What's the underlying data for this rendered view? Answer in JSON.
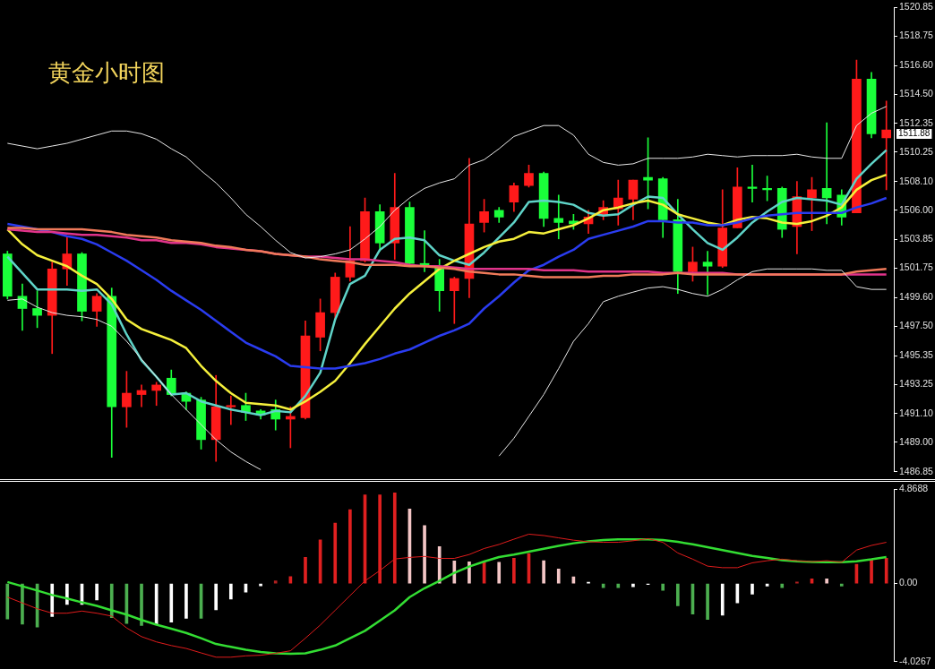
{
  "chart_data": [
    {
      "type": "candlestick",
      "title": "黄金小时图",
      "categories": [
        null,
        null,
        null,
        null,
        null,
        null,
        null,
        null,
        null,
        null,
        null,
        null,
        null,
        null,
        null,
        null,
        null,
        null,
        null,
        null,
        null,
        null,
        null,
        null,
        null,
        null,
        null,
        null,
        null,
        null,
        null,
        null,
        null,
        null,
        null,
        null,
        null,
        null,
        null,
        null,
        null,
        null,
        null,
        null,
        null,
        null,
        null,
        null,
        null,
        null,
        null,
        null,
        null,
        null,
        null,
        null,
        null,
        null,
        null,
        null
      ],
      "ohlc": [
        [
          1502.8,
          1503.0,
          1499.5,
          1499.7
        ],
        [
          1499.7,
          1500.6,
          1497.2,
          1498.8
        ],
        [
          1498.8,
          1500.1,
          1497.4,
          1498.3
        ],
        [
          1498.3,
          1502.2,
          1495.5,
          1501.7
        ],
        [
          1501.7,
          1504.0,
          1500.5,
          1502.8
        ],
        [
          1502.8,
          1502.9,
          1497.9,
          1498.6
        ],
        [
          1498.6,
          1499.9,
          1497.5,
          1499.7
        ],
        [
          1499.7,
          1500.3,
          1487.9,
          1491.6
        ],
        [
          1491.6,
          1494.2,
          1490.1,
          1492.6
        ],
        [
          1492.5,
          1493.2,
          1491.6,
          1492.8
        ],
        [
          1492.8,
          1493.4,
          1491.7,
          1493.2
        ],
        [
          1493.7,
          1494.3,
          1492.4,
          1492.5
        ],
        [
          1492.6,
          1492.7,
          1491.4,
          1492.0
        ],
        [
          1492.1,
          1492.3,
          1488.5,
          1489.2
        ],
        [
          1489.2,
          1493.9,
          1487.6,
          1491.6
        ],
        [
          1491.6,
          1492.4,
          1490.3,
          1491.7
        ],
        [
          1491.7,
          1492.6,
          1490.6,
          1491.2
        ],
        [
          1491.3,
          1491.4,
          1490.7,
          1491.0
        ],
        [
          1491.4,
          1492.1,
          1489.9,
          1490.7
        ],
        [
          1490.7,
          1491.6,
          1488.6,
          1490.9
        ],
        [
          1490.8,
          1497.9,
          1490.7,
          1496.8
        ],
        [
          1496.7,
          1499.5,
          1495.7,
          1498.5
        ],
        [
          1498.5,
          1501.4,
          1498.0,
          1501.1
        ],
        [
          1501.1,
          1504.8,
          1500.8,
          1502.3
        ],
        [
          1502.3,
          1506.9,
          1502.2,
          1505.9
        ],
        [
          1505.9,
          1506.4,
          1503.0,
          1503.6
        ],
        [
          1503.6,
          1508.7,
          1502.4,
          1506.2
        ],
        [
          1506.2,
          1506.6,
          1502.0,
          1502.1
        ],
        [
          1502.1,
          1504.5,
          1501.5,
          1501.9
        ],
        [
          1501.9,
          1502.4,
          1498.6,
          1500.1
        ],
        [
          1500.1,
          1501.1,
          1497.7,
          1501.0
        ],
        [
          1501.0,
          1509.8,
          1499.6,
          1505.0
        ],
        [
          1505.1,
          1506.8,
          1504.4,
          1505.9
        ],
        [
          1506.0,
          1506.2,
          1505.1,
          1505.5
        ],
        [
          1506.6,
          1508.0,
          1505.9,
          1507.8
        ],
        [
          1507.8,
          1509.3,
          1507.7,
          1508.7
        ],
        [
          1508.7,
          1508.8,
          1504.8,
          1505.4
        ],
        [
          1505.4,
          1507.1,
          1503.9,
          1505.1
        ],
        [
          1505.2,
          1505.7,
          1504.6,
          1505.0
        ],
        [
          1505.0,
          1506.0,
          1504.3,
          1505.5
        ],
        [
          1505.6,
          1506.7,
          1505.3,
          1506.2
        ],
        [
          1506.1,
          1508.2,
          1504.9,
          1506.9
        ],
        [
          1506.8,
          1508.2,
          1505.3,
          1508.2
        ],
        [
          1508.4,
          1511.3,
          1506.1,
          1508.2
        ],
        [
          1508.3,
          1508.4,
          1504.0,
          1505.3
        ],
        [
          1505.3,
          1506.8,
          1499.9,
          1501.5
        ],
        [
          1501.5,
          1503.3,
          1500.8,
          1502.2
        ],
        [
          1502.2,
          1503.0,
          1499.8,
          1501.9
        ],
        [
          1501.9,
          1507.5,
          1501.8,
          1504.7
        ],
        [
          1504.7,
          1509.1,
          1504.7,
          1507.7
        ],
        [
          1507.7,
          1509.3,
          1506.6,
          1507.6
        ],
        [
          1507.6,
          1508.5,
          1506.7,
          1507.5
        ],
        [
          1507.6,
          1507.7,
          1504.0,
          1504.6
        ],
        [
          1504.8,
          1508.1,
          1502.8,
          1507.0
        ],
        [
          1506.9,
          1508.4,
          1504.5,
          1507.5
        ],
        [
          1507.6,
          1512.4,
          1505.0,
          1506.9
        ],
        [
          1507.1,
          1507.5,
          1504.9,
          1505.5
        ],
        [
          1505.8,
          1517.0,
          1505.8,
          1515.6
        ],
        [
          1515.6,
          1516.1,
          1511.3,
          1511.6
        ],
        [
          1511.3,
          1514.0,
          1507.5,
          1511.88
        ]
      ],
      "series": [
        {
          "type": "line",
          "color": "#e8e8e8",
          "values": [
            1510.9,
            1510.7,
            1510.5,
            1510.7,
            1510.9,
            1511.2,
            1511.5,
            1511.8,
            1511.8,
            1511.6,
            1511.2,
            1510.5,
            1509.9,
            1508.9,
            1508.0,
            1506.9,
            1505.7,
            1504.8,
            1503.8,
            1502.9,
            1502.5,
            1502.6,
            1502.8,
            1503.1,
            1503.9,
            1504.8,
            1506.0,
            1506.9,
            1507.6,
            1508.0,
            1508.3,
            1509.3,
            1509.7,
            1510.5,
            1511.4,
            1511.8,
            1512.2,
            1512.2,
            1511.5,
            1510.1,
            1509.5,
            1509.3,
            1509.4,
            1509.8,
            1509.8,
            1509.8,
            1509.9,
            1510.1,
            1510.0,
            1509.9,
            1510.0,
            1510.0,
            1510.0,
            1510.1,
            1509.9,
            1509.8,
            1509.8,
            1512.2,
            1513.1,
            1513.6
          ]
        },
        {
          "type": "line",
          "color": "#e8e8e8",
          "values": [
            1499.4,
            1499.5,
            1498.9,
            1498.5,
            1498.3,
            1498.2,
            1498.0,
            1497.5,
            1496.4,
            1495.1,
            1493.8,
            1492.5,
            1491.4,
            1490.3,
            1489.2,
            1488.3,
            1487.6,
            1487.0,
            null,
            null,
            null,
            null,
            null,
            null,
            null,
            null,
            null,
            null,
            null,
            null,
            null,
            null,
            null,
            1488.0,
            1489.3,
            1490.9,
            1492.5,
            1494.4,
            1496.4,
            1497.7,
            1499.3,
            1499.7,
            1500.0,
            1500.3,
            1500.4,
            1500.2,
            1499.9,
            1499.7,
            1500.2,
            1500.9,
            1501.5,
            1501.7,
            1501.7,
            1501.7,
            1501.7,
            1501.6,
            1501.6,
            1500.4,
            1500.2,
            1500.2
          ]
        },
        {
          "type": "line",
          "color": "#f07a5a",
          "values": [
            1504.7,
            1504.7,
            1504.6,
            1504.6,
            1504.6,
            1504.6,
            1504.5,
            1504.4,
            1504.2,
            1504.1,
            1504.0,
            1503.8,
            1503.7,
            1503.6,
            1503.4,
            1503.3,
            1503.1,
            1503.0,
            1502.8,
            1502.7,
            1502.6,
            1502.4,
            1502.3,
            1502.2,
            1502.0,
            1502.0,
            1502.0,
            1501.9,
            1501.9,
            1501.8,
            1501.7,
            1501.5,
            1501.4,
            1501.3,
            1501.3,
            1501.2,
            1501.1,
            1501.1,
            1501.1,
            1501.1,
            1501.2,
            1501.2,
            1501.3,
            1501.3,
            1501.3,
            1501.4,
            1501.3,
            1501.3,
            1501.3,
            1501.3,
            1501.3,
            1501.3,
            1501.3,
            1501.3,
            1501.3,
            1501.3,
            1501.3,
            1501.5,
            1501.6,
            1501.7
          ]
        },
        {
          "type": "line",
          "color": "#e0338a",
          "values": [
            1504.6,
            1504.5,
            1504.4,
            1504.4,
            1504.3,
            1504.2,
            1504.2,
            1504.1,
            1504.0,
            1503.8,
            1503.8,
            1503.6,
            1503.6,
            1503.5,
            1503.3,
            1503.2,
            1503.1,
            1503.0,
            1502.8,
            1502.7,
            1502.6,
            1502.6,
            1502.5,
            1502.4,
            1502.4,
            1502.3,
            1502.2,
            1502.0,
            1501.9,
            1501.9,
            1501.8,
            1501.7,
            1501.7,
            1501.7,
            1501.7,
            1501.7,
            1501.6,
            1501.6,
            1501.6,
            1501.5,
            1501.5,
            1501.5,
            1501.5,
            1501.5,
            1501.4,
            1501.4,
            1501.4,
            1501.4,
            1501.4,
            1501.3,
            1501.3,
            1501.3,
            1501.3,
            1501.3,
            1501.3,
            1501.3,
            1501.3,
            1501.3,
            1501.3,
            1501.3
          ]
        },
        {
          "type": "line",
          "color": "#2a3cf0",
          "values": [
            1505.0,
            1504.8,
            1504.6,
            1504.4,
            1504.1,
            1503.9,
            1503.5,
            1502.9,
            1502.3,
            1501.6,
            1500.9,
            1500.1,
            1499.4,
            1498.7,
            1497.9,
            1497.1,
            1496.3,
            1495.8,
            1495.3,
            1494.6,
            1494.5,
            1494.4,
            1494.4,
            1494.6,
            1494.8,
            1495.1,
            1495.5,
            1495.8,
            1496.3,
            1496.8,
            1497.2,
            1497.7,
            1498.8,
            1499.7,
            1500.7,
            1501.6,
            1502.0,
            1502.6,
            1503.1,
            1503.9,
            1504.2,
            1504.5,
            1504.8,
            1505.2,
            1505.2,
            1505.1,
            1505.1,
            1504.9,
            1504.9,
            1505.1,
            1505.4,
            1505.6,
            1505.7,
            1505.8,
            1505.8,
            1505.8,
            1505.8,
            1506.2,
            1506.5,
            1506.9
          ]
        },
        {
          "type": "line",
          "color": "#f5f03c",
          "values": [
            1504.6,
            1503.5,
            1502.7,
            1502.3,
            1501.9,
            1501.2,
            1500.6,
            1499.5,
            1498.0,
            1497.3,
            1496.9,
            1496.5,
            1495.9,
            1494.6,
            1493.5,
            1492.6,
            1491.9,
            1491.8,
            1491.7,
            1491.4,
            1492.0,
            1492.7,
            1493.5,
            1494.8,
            1496.2,
            1497.5,
            1498.8,
            1499.9,
            1500.8,
            1501.7,
            1502.3,
            1502.8,
            1503.3,
            1503.7,
            1503.9,
            1504.4,
            1504.3,
            1504.6,
            1504.9,
            1505.4,
            1506.0,
            1506.2,
            1506.5,
            1506.7,
            1506.4,
            1505.7,
            1505.4,
            1505.1,
            1504.9,
            1505.3,
            1505.5,
            1505.4,
            1505.1,
            1505.0,
            1505.2,
            1505.6,
            1506.2,
            1507.5,
            1508.2,
            1508.6
          ]
        },
        {
          "type": "line",
          "color": "#5fd3c8",
          "values": [
            1502.6,
            1501.4,
            1500.2,
            1500.2,
            1500.2,
            1500.1,
            1500.2,
            1499.1,
            1496.9,
            1495.0,
            1493.8,
            1492.5,
            1492.6,
            1492.0,
            1491.7,
            1491.4,
            1491.2,
            1491.0,
            1491.3,
            1491.2,
            1492.4,
            1494.1,
            1498.0,
            1500.6,
            1501.2,
            1503.1,
            1503.9,
            1504.0,
            1503.8,
            1502.7,
            1502.3,
            1502.0,
            1502.9,
            1504.0,
            1505.1,
            1506.6,
            1506.7,
            1506.6,
            1506.4,
            1505.8,
            1505.6,
            1505.7,
            1506.4,
            1507.0,
            1506.9,
            1505.7,
            1504.6,
            1503.6,
            1503.1,
            1504.0,
            1505.1,
            1505.9,
            1506.6,
            1506.9,
            1506.8,
            1506.7,
            1506.4,
            1508.3,
            1509.4,
            1510.4
          ]
        }
      ],
      "ylim": [
        1486.85,
        1520.85
      ],
      "yticks": [
        1486.85,
        {
          "value": 1489,
          "label": "1489.00"
        },
        {
          "value": 1491.1,
          "label": "1491.10"
        },
        1493.25,
        1495.35,
        {
          "value": 1497.5,
          "label": "1497.50"
        },
        {
          "value": 1499.6,
          "label": "1499.60"
        },
        1501.75,
        1503.85,
        {
          "value": 1506,
          "label": "1506.00"
        },
        {
          "value": 1508.1,
          "label": "1508.10"
        },
        1510.25,
        1512.35,
        {
          "value": 1514.5,
          "label": "1514.50"
        },
        {
          "value": 1516.6,
          "label": "1516.60"
        },
        1518.75,
        1520.85
      ],
      "tick_labels": "y",
      "annotations": [
        "1511.88"
      ]
    },
    {
      "type": "bar",
      "categories": [
        null,
        null,
        null,
        null,
        null,
        null,
        null,
        null,
        null,
        null,
        null,
        null,
        null,
        null,
        null,
        null,
        null,
        null,
        null,
        null,
        null,
        null,
        null,
        null,
        null,
        null,
        null,
        null,
        null,
        null,
        null,
        null,
        null,
        null,
        null,
        null,
        null,
        null,
        null,
        null,
        null,
        null,
        null,
        null,
        null,
        null,
        null,
        null,
        null,
        null,
        null,
        null,
        null,
        null,
        null,
        null,
        null,
        null,
        null,
        null
      ],
      "series": [
        {
          "type": "bar",
          "values": [
            -1.83,
            -2.1,
            -2.24,
            -1.7,
            -1.08,
            -1.08,
            -0.85,
            -1.76,
            -2.06,
            -2.17,
            -2.09,
            -1.99,
            -1.8,
            -1.8,
            -1.35,
            -0.8,
            -0.44,
            -0.12,
            0.14,
            0.36,
            1.35,
            2.26,
            3.12,
            3.82,
            4.58,
            4.58,
            4.68,
            3.85,
            2.99,
            1.91,
            1.17,
            1.12,
            1.14,
            1.1,
            1.31,
            1.55,
            1.18,
            0.75,
            0.35,
            0.07,
            -0.21,
            -0.21,
            -0.16,
            -0.05,
            -0.35,
            -1.15,
            -1.58,
            -1.85,
            -1.63,
            -1.0,
            -0.55,
            -0.13,
            -0.21,
            0.08,
            0.24,
            0.24,
            -0.13,
            0.99,
            1.23,
            1.31
          ],
          "colors": [
            "#4caf50",
            "#4caf50",
            "#4caf50",
            "#ffffff",
            "#ffffff",
            "#ffffff",
            "#ffffff",
            "#4caf50",
            "#4caf50",
            "#4caf50",
            "#ffffff",
            "#ffffff",
            "#ffffff",
            "#4caf50",
            "#ffffff",
            "#ffffff",
            "#ffffff",
            "#ffffff",
            "#b02020",
            "#e02020",
            "#e02020",
            "#e02020",
            "#e02020",
            "#e02020",
            "#e02020",
            "#e02020",
            "#e02020",
            "#f4c6c6",
            "#f4c6c6",
            "#f4c6c6",
            "#f4c6c6",
            "#f4c6c6",
            "#e02020",
            "#f4c6c6",
            "#e02020",
            "#e02020",
            "#f4c6c6",
            "#f4c6c6",
            "#f4c6c6",
            "#ffffff",
            "#4caf50",
            "#4caf50",
            "#ffffff",
            "#ffffff",
            "#4caf50",
            "#4caf50",
            "#4caf50",
            "#4caf50",
            "#ffffff",
            "#ffffff",
            "#ffffff",
            "#ffffff",
            "#4caf50",
            "#b02020",
            "#e02020",
            "#f4c6c6",
            "#4caf50",
            "#e02020",
            "#e02020",
            "#e02020"
          ]
        },
        {
          "type": "line",
          "color": "#e01c1c",
          "values": [
            -0.7,
            -1.0,
            -1.3,
            -1.53,
            -1.53,
            -1.42,
            -1.53,
            -1.68,
            -2.29,
            -2.74,
            -3.01,
            -3.2,
            -3.35,
            -3.58,
            -3.8,
            -3.8,
            -3.73,
            -3.7,
            -3.6,
            -3.47,
            -2.82,
            -2.14,
            -1.38,
            -0.62,
            0.14,
            0.67,
            1.27,
            1.35,
            1.4,
            1.3,
            1.3,
            1.5,
            1.81,
            2.02,
            2.29,
            2.55,
            2.48,
            2.36,
            2.24,
            2.16,
            2.13,
            2.13,
            2.21,
            2.32,
            2.13,
            1.58,
            1.26,
            0.9,
            0.82,
            0.82,
            1.07,
            1.18,
            1.26,
            1.18,
            1.13,
            1.18,
            1.1,
            1.73,
            1.97,
            2.13
          ]
        },
        {
          "type": "line",
          "color": "#33dd33",
          "values": [
            0.08,
            -0.14,
            -0.36,
            -0.59,
            -0.77,
            -0.97,
            -1.15,
            -1.38,
            -1.6,
            -1.88,
            -2.12,
            -2.33,
            -2.55,
            -2.82,
            -3.12,
            -3.27,
            -3.42,
            -3.53,
            -3.6,
            -3.62,
            -3.6,
            -3.42,
            -3.2,
            -2.82,
            -2.44,
            -1.91,
            -1.38,
            -0.7,
            -0.24,
            0.14,
            0.55,
            0.88,
            1.14,
            1.37,
            1.5,
            1.65,
            1.8,
            1.95,
            2.08,
            2.18,
            2.25,
            2.28,
            2.28,
            2.28,
            2.25,
            2.15,
            2.03,
            1.88,
            1.73,
            1.58,
            1.43,
            1.32,
            1.21,
            1.15,
            1.12,
            1.1,
            1.1,
            1.15,
            1.25,
            1.37
          ]
        }
      ],
      "ylim": [
        -4.0267,
        4.8688
      ],
      "yticks": [
        -4.0267,
        {
          "value": 0,
          "label": "0.00"
        },
        4.8688
      ],
      "tick_labels": "y"
    }
  ]
}
